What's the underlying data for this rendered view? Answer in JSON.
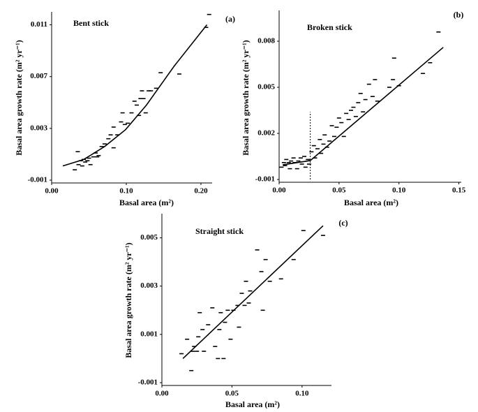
{
  "chart_data": [
    {
      "type": "scatter",
      "label": "(a)",
      "title": "Bent stick",
      "xlabel": "Basal area (m²)",
      "ylabel": "Basal area growth rate (m² yr⁻¹)",
      "color": "#000000",
      "xlim": [
        0,
        0.215
      ],
      "ylim": [
        -0.001,
        0.012
      ],
      "xticks": [
        {
          "value": 0,
          "label": "0.00"
        },
        {
          "value": 0.1,
          "label": "0.10"
        },
        {
          "value": 0.2,
          "label": "0.20"
        }
      ],
      "yticks": [
        -0.001,
        0.003,
        0.007,
        0.011
      ],
      "x": [
        0.031,
        0.035,
        0.036,
        0.039,
        0.041,
        0.043,
        0.045,
        0.048,
        0.05,
        0.052,
        0.056,
        0.059,
        0.061,
        0.063,
        0.067,
        0.071,
        0.076,
        0.079,
        0.083,
        0.083,
        0.088,
        0.093,
        0.095,
        0.098,
        0.102,
        0.107,
        0.111,
        0.114,
        0.117,
        0.119,
        0.121,
        0.123,
        0.126,
        0.13,
        0.133,
        0.14,
        0.146,
        0.171,
        0.207,
        0.211
      ],
      "values": [
        -0.0002,
        0.0012,
        0.0002,
        0.0005,
        0.0001,
        0.0006,
        0.0004,
        0.0005,
        0.0007,
        0.0002,
        0.0008,
        0.0011,
        0.0008,
        0.0009,
        0.0016,
        0.0018,
        0.0022,
        0.0025,
        0.0015,
        0.0031,
        0.0025,
        0.0035,
        0.0042,
        0.0033,
        0.0034,
        0.0042,
        0.0051,
        0.0048,
        0.004,
        0.0053,
        0.0059,
        0.0053,
        0.0042,
        0.0059,
        0.0059,
        0.0061,
        0.0073,
        0.0072,
        0.0108,
        0.0118
      ],
      "fit": {
        "x": [
          0.015,
          0.043,
          0.071,
          0.099,
          0.127,
          0.164,
          0.208
        ],
        "values": [
          0.0001,
          0.0006,
          0.0016,
          0.0029,
          0.0048,
          0.0078,
          0.011
        ]
      }
    },
    {
      "type": "scatter",
      "label": "(b)",
      "title": "Broken stick",
      "xlabel": "Basal area (m²)",
      "ylabel": "Basal area growth rate (m² yr⁻¹)",
      "color": "#000000",
      "xlim": [
        0,
        0.152
      ],
      "ylim": [
        -0.001,
        0.01
      ],
      "xticks": [
        {
          "value": 0,
          "label": "0.00"
        },
        0.05,
        {
          "value": 0.1,
          "label": "0.10"
        },
        0.15
      ],
      "yticks": [
        -0.001,
        0.002,
        0.005,
        0.008
      ],
      "x": [
        0.002,
        0.004,
        0.005,
        0.006,
        0.008,
        0.009,
        0.01,
        0.012,
        0.013,
        0.015,
        0.016,
        0.018,
        0.019,
        0.021,
        0.022,
        0.024,
        0.025,
        0.027,
        0.029,
        0.03,
        0.032,
        0.034,
        0.035,
        0.037,
        0.038,
        0.04,
        0.042,
        0.044,
        0.046,
        0.048,
        0.05,
        0.052,
        0.054,
        0.056,
        0.058,
        0.06,
        0.062,
        0.064,
        0.066,
        0.068,
        0.07,
        0.072,
        0.075,
        0.078,
        0.08,
        0.082,
        0.092,
        0.095,
        0.096,
        0.1,
        0.12,
        0.126,
        0.133
      ],
      "values": [
        -0.0002,
        0.0001,
        -0.0001,
        0.0003,
        0.0001,
        -0.0003,
        0.0002,
        0.0004,
        0.0001,
        -0.0003,
        0.0002,
        0.0004,
        0.0,
        0.0005,
        -0.0002,
        0.0003,
        0.0,
        0.0008,
        0.0012,
        0.0004,
        0.001,
        0.0016,
        0.0007,
        0.0013,
        0.0019,
        0.0011,
        0.0015,
        0.0025,
        0.0018,
        0.0024,
        0.003,
        0.0027,
        0.0018,
        0.0033,
        0.0029,
        0.0035,
        0.0037,
        0.0031,
        0.004,
        0.0046,
        0.0034,
        0.0042,
        0.0052,
        0.0044,
        0.0055,
        0.0041,
        0.005,
        0.0055,
        0.0069,
        0.0051,
        0.0059,
        0.0066,
        0.0086
      ],
      "fit": {
        "x": [
          0.003,
          0.026,
          0.137
        ],
        "values": [
          -5e-05,
          0.00023,
          0.0076
        ]
      },
      "breakpoint": {
        "x": 0.026,
        "top": 0.0034
      }
    },
    {
      "type": "scatter",
      "label": "(c)",
      "title": "Straight stick",
      "xlabel": "Basal area (m²)",
      "ylabel": "Basal area growth rate (m² yr⁻¹)",
      "color": "#000000",
      "xlim": [
        0,
        0.121
      ],
      "ylim": [
        -0.001,
        0.006
      ],
      "xticks": [
        {
          "value": 0,
          "label": "0.00"
        },
        0.05,
        {
          "value": 0.1,
          "label": "0.10"
        }
      ],
      "yticks": [
        -0.001,
        0.001,
        0.003,
        0.005
      ],
      "x": [
        0.014,
        0.018,
        0.021,
        0.022,
        0.023,
        0.025,
        0.026,
        0.027,
        0.029,
        0.03,
        0.033,
        0.036,
        0.038,
        0.04,
        0.041,
        0.042,
        0.044,
        0.045,
        0.047,
        0.049,
        0.051,
        0.054,
        0.055,
        0.057,
        0.059,
        0.06,
        0.062,
        0.063,
        0.068,
        0.071,
        0.072,
        0.074,
        0.077,
        0.085,
        0.094,
        0.101,
        0.115
      ],
      "values": [
        0.0002,
        0.0008,
        -0.0005,
        0.0003,
        0.0005,
        0.0003,
        0.0009,
        0.0019,
        0.0012,
        0.0003,
        0.0014,
        0.0021,
        0.0005,
        0.0,
        0.0012,
        0.0019,
        0.0,
        0.0015,
        0.002,
        0.0008,
        0.002,
        0.0022,
        0.0013,
        0.0027,
        0.0022,
        0.0032,
        0.0023,
        0.0028,
        0.0045,
        0.0036,
        0.002,
        0.0041,
        0.0032,
        0.0033,
        0.0041,
        0.0053,
        0.0051
      ],
      "fit": {
        "x": [
          0.015,
          0.115
        ],
        "values": [
          0.0,
          0.0055
        ]
      }
    }
  ]
}
